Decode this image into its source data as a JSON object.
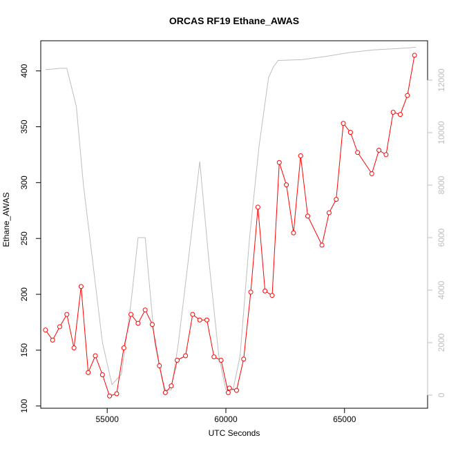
{
  "chart_data": {
    "type": "line",
    "title": "ORCAS RF19 Ethane_AWAS",
    "xlabel": "UTC Seconds",
    "ylabel": "Ethane_AWAS",
    "xlim": [
      52200,
      68500
    ],
    "ylim": [
      98,
      427
    ],
    "y2lim": [
      -500,
      13500
    ],
    "x_ticks": [
      55000,
      60000,
      65000
    ],
    "y_ticks": [
      100,
      150,
      200,
      250,
      300,
      350,
      400
    ],
    "y2_ticks": [
      0,
      2000,
      4000,
      6000,
      8000,
      10000,
      12000
    ],
    "series": [
      {
        "axis": "left",
        "color": "#ff0000",
        "style": "line+points",
        "x": [
          52400,
          52700,
          53000,
          53300,
          53600,
          53900,
          54200,
          54500,
          54800,
          55100,
          55400,
          55700,
          56000,
          56300,
          56600,
          56900,
          57200,
          57450,
          57700,
          57950,
          58300,
          58600,
          58900,
          59200,
          59500,
          59800,
          60100,
          60150,
          60450,
          60750,
          61050,
          61350,
          61650,
          61950,
          62250,
          62550,
          62850,
          63150,
          63450,
          64050,
          64350,
          64650,
          64950,
          65250,
          65550,
          66150,
          66450,
          66750,
          67050,
          67350,
          67650,
          67950
        ],
        "y": [
          168,
          159,
          171,
          182,
          152,
          207,
          130,
          145,
          128,
          109,
          111,
          152,
          182,
          174,
          186,
          173,
          136,
          112,
          118,
          141,
          145,
          182,
          177,
          177,
          144,
          141,
          112,
          116,
          114,
          142,
          202,
          278,
          203,
          199,
          318,
          298,
          255,
          324,
          270,
          244,
          273,
          285,
          353,
          345,
          327,
          308,
          329,
          325,
          363,
          361,
          378,
          414
        ]
      },
      {
        "axis": "right",
        "color": "#bdbdbd",
        "style": "line",
        "x": [
          52400,
          52700,
          53000,
          53300,
          53700,
          54000,
          54400,
          54800,
          55200,
          55600,
          56000,
          56300,
          56600,
          57000,
          57400,
          57700,
          58000,
          58400,
          58900,
          59300,
          59700,
          60000,
          60300,
          60600,
          61000,
          61400,
          61800,
          62000,
          62200,
          63200,
          64200,
          65200,
          66200,
          67200,
          68000
        ],
        "y": [
          12400,
          12420,
          12450,
          12450,
          11000,
          8000,
          5000,
          2000,
          400,
          800,
          3500,
          6000,
          6000,
          2000,
          200,
          200,
          2000,
          5000,
          8900,
          5000,
          1500,
          200,
          200,
          1500,
          6000,
          9500,
          12100,
          12500,
          12750,
          12780,
          12900,
          13050,
          13150,
          13200,
          13250
        ]
      }
    ]
  }
}
